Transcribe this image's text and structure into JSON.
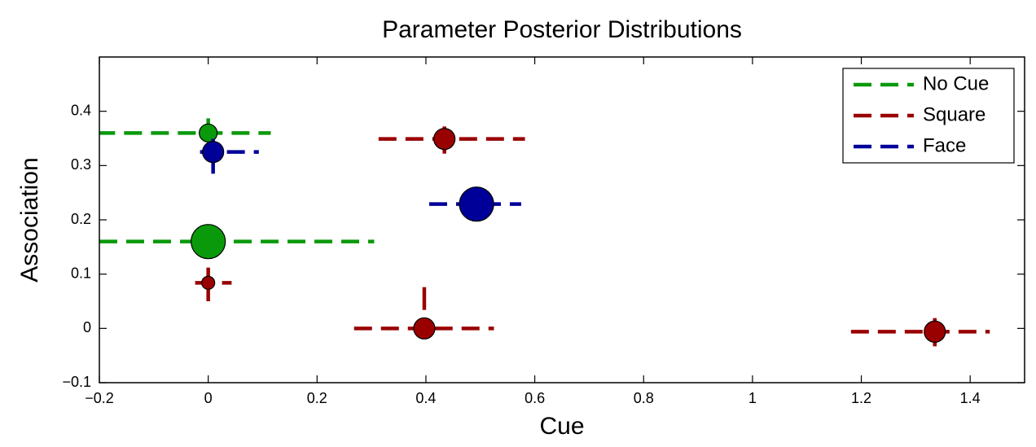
{
  "chart_data": {
    "type": "scatter",
    "title": "Parameter Posterior Distributions",
    "x_label": "Cue",
    "y_label": "Association",
    "xlim": [
      -0.2,
      1.5
    ],
    "ylim": [
      -0.1,
      0.5
    ],
    "xticks": [
      {
        "value": -0.2,
        "label": "−0.2"
      },
      0,
      0.2,
      0.4,
      0.6,
      0.8,
      1,
      1.2,
      1.4
    ],
    "yticks": [
      {
        "value": -0.1,
        "label": "−0.1"
      },
      0,
      0.1,
      0.2,
      0.3,
      0.4
    ],
    "legend_position": "upper right",
    "series": [
      {
        "name": "No Cue",
        "color": "#0a990a",
        "x": [
          0,
          0
        ],
        "values": [
          0.36,
          0.16
        ],
        "sizes": [
          11,
          21
        ],
        "x_low": [
          -0.204,
          -0.2
        ],
        "x_high": [
          0.115,
          0.305
        ],
        "y_low": [
          0.36,
          null
        ],
        "y_high": [
          0.387,
          null
        ]
      },
      {
        "name": "Square",
        "color": "#990000",
        "x": [
          0.434,
          0,
          0.397,
          1.335
        ],
        "values": [
          0.349,
          0.084,
          0,
          -0.006
        ],
        "sizes": [
          13,
          8,
          13,
          13
        ],
        "x_low": [
          0.313,
          -0.024,
          0.268,
          1.181
        ],
        "x_high": [
          0.582,
          0.043,
          0.525,
          1.436
        ],
        "y_low": [
          0.322,
          0.05,
          0.034,
          -0.033
        ],
        "y_high": [
          0.372,
          0.112,
          0.076,
          0.019
        ]
      },
      {
        "name": "Face",
        "color": "#000099",
        "x": [
          0.009,
          0.493
        ],
        "values": [
          0.325,
          0.229
        ],
        "sizes": [
          13,
          21
        ],
        "x_low": [
          -0.015,
          0.406
        ],
        "x_high": [
          0.093,
          0.575
        ],
        "y_low": [
          0.285,
          null
        ],
        "y_high": [
          0.349,
          null
        ]
      }
    ]
  }
}
